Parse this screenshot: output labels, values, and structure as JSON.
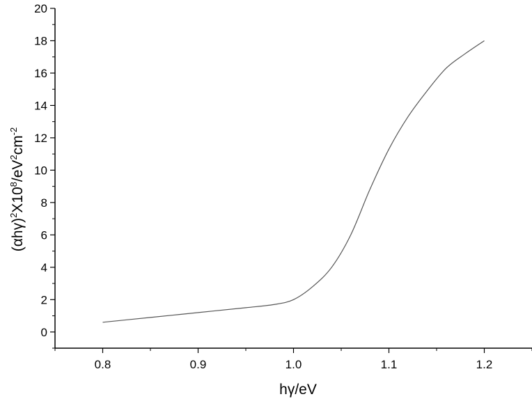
{
  "chart_data": {
    "type": "line",
    "title": "",
    "xlabel": "hγ/eV",
    "ylabel_parts": {
      "p1": "(αhγ)",
      "p2": "2",
      "p3": "X10",
      "p4": "8",
      "p5": "/eV",
      "p6": "2",
      "p7": "cm",
      "p8": "-2"
    },
    "xlim": [
      0.75,
      1.25
    ],
    "ylim": [
      -1,
      20
    ],
    "x_ticks": [
      "0.8",
      "0.9",
      "1.0",
      "1.1",
      "1.2"
    ],
    "y_ticks": [
      "0",
      "2",
      "4",
      "6",
      "8",
      "10",
      "12",
      "14",
      "16",
      "18",
      "20"
    ],
    "grid": false,
    "series": [
      {
        "color": "#555555",
        "x": [
          0.8,
          0.85,
          0.9,
          0.95,
          0.98,
          1.0,
          1.02,
          1.04,
          1.06,
          1.08,
          1.1,
          1.12,
          1.14,
          1.16,
          1.18,
          1.2
        ],
        "y": [
          0.6,
          0.9,
          1.2,
          1.5,
          1.7,
          2.0,
          2.8,
          4.0,
          6.0,
          8.8,
          11.3,
          13.3,
          14.9,
          16.3,
          17.2,
          18.0
        ]
      }
    ]
  }
}
